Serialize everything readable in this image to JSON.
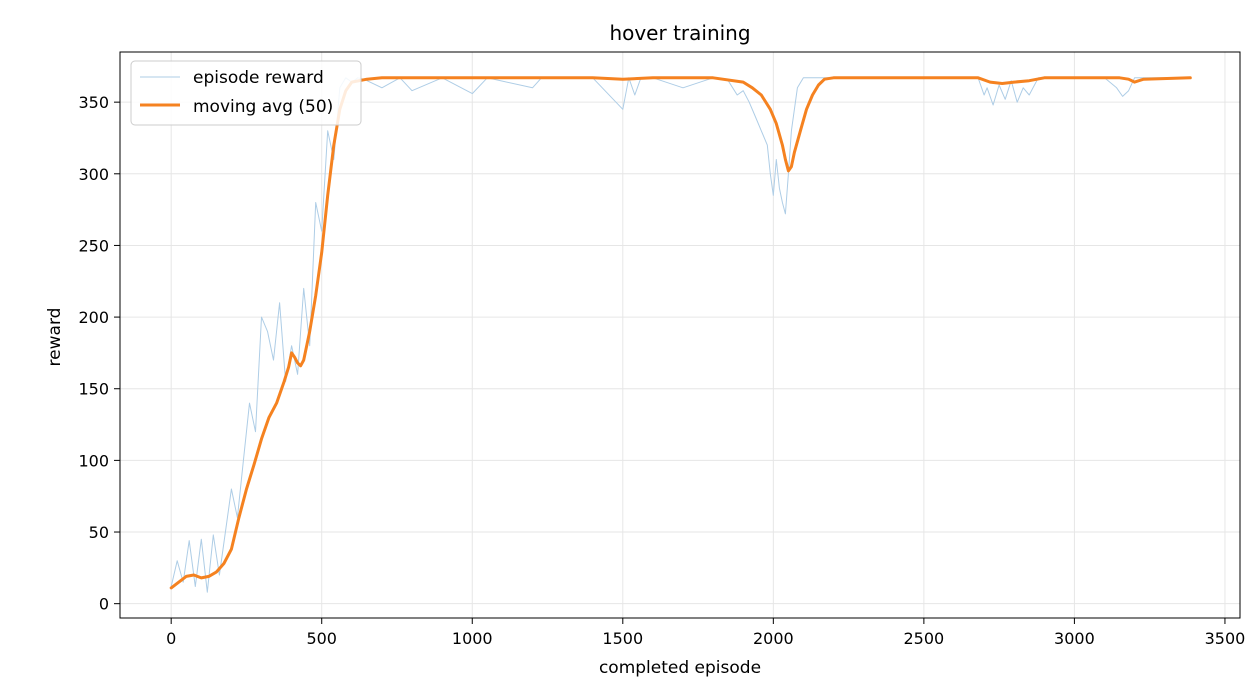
{
  "chart_data": {
    "type": "line",
    "title": "hover training",
    "xlabel": "completed episode",
    "ylabel": "reward",
    "xlim": [
      -170,
      3550
    ],
    "ylim": [
      -10,
      385
    ],
    "xticks": [
      0,
      500,
      1000,
      1500,
      2000,
      2500,
      3000,
      3500
    ],
    "yticks": [
      0,
      50,
      100,
      150,
      200,
      250,
      300,
      350
    ],
    "grid": true,
    "legend_position": "top-left",
    "series": [
      {
        "name": "episode reward",
        "color": "#aecde6",
        "style": "thin noisy line",
        "x": [
          0,
          20,
          40,
          60,
          80,
          100,
          120,
          140,
          160,
          180,
          200,
          220,
          240,
          260,
          280,
          300,
          320,
          340,
          360,
          380,
          400,
          420,
          440,
          460,
          480,
          500,
          520,
          540,
          560,
          580,
          600,
          620,
          640,
          700,
          760,
          800,
          900,
          1000,
          1050,
          1200,
          1230,
          1400,
          1500,
          1520,
          1540,
          1560,
          1600,
          1700,
          1800,
          1850,
          1880,
          1900,
          1920,
          1940,
          1960,
          1980,
          1990,
          2000,
          2010,
          2020,
          2030,
          2040,
          2050,
          2060,
          2070,
          2080,
          2100,
          2120,
          2140,
          2160,
          2200,
          2400,
          2600,
          2680,
          2700,
          2710,
          2730,
          2750,
          2770,
          2790,
          2810,
          2830,
          2850,
          2880,
          2950,
          3100,
          3140,
          3160,
          3180,
          3200,
          3250,
          3385
        ],
        "values": [
          12,
          30,
          15,
          44,
          12,
          45,
          8,
          48,
          20,
          50,
          80,
          60,
          100,
          140,
          120,
          200,
          190,
          170,
          210,
          155,
          180,
          160,
          220,
          180,
          280,
          260,
          330,
          310,
          360,
          367,
          364,
          367,
          366,
          360,
          367,
          358,
          367,
          356,
          367,
          360,
          367,
          367,
          345,
          367,
          355,
          367,
          367,
          360,
          367,
          365,
          355,
          358,
          350,
          340,
          330,
          320,
          300,
          285,
          310,
          290,
          280,
          272,
          300,
          330,
          345,
          360,
          367,
          367,
          367,
          367,
          367,
          367,
          367,
          367,
          355,
          360,
          348,
          362,
          352,
          365,
          350,
          360,
          355,
          367,
          367,
          367,
          360,
          354,
          358,
          367,
          367,
          367
        ]
      },
      {
        "name": "moving avg (50)",
        "color": "#f58220",
        "style": "thick line",
        "x": [
          0,
          25,
          50,
          75,
          100,
          125,
          150,
          175,
          200,
          225,
          250,
          275,
          300,
          325,
          350,
          375,
          390,
          400,
          410,
          420,
          430,
          440,
          460,
          480,
          500,
          520,
          540,
          560,
          580,
          600,
          650,
          700,
          800,
          1000,
          1200,
          1400,
          1500,
          1600,
          1700,
          1800,
          1900,
          1930,
          1960,
          1990,
          2010,
          2030,
          2040,
          2050,
          2060,
          2070,
          2090,
          2110,
          2130,
          2150,
          2170,
          2200,
          2300,
          2500,
          2680,
          2720,
          2760,
          2800,
          2850,
          2900,
          3000,
          3100,
          3150,
          3180,
          3200,
          3230,
          3385
        ],
        "values": [
          11,
          15,
          19,
          20,
          18,
          19,
          22,
          28,
          38,
          60,
          80,
          97,
          115,
          130,
          140,
          155,
          165,
          175,
          172,
          168,
          166,
          170,
          190,
          215,
          245,
          285,
          320,
          345,
          358,
          364,
          366,
          367,
          367,
          367,
          367,
          367,
          366,
          367,
          367,
          367,
          364,
          360,
          355,
          345,
          335,
          320,
          310,
          302,
          305,
          315,
          330,
          345,
          355,
          362,
          366,
          367,
          367,
          367,
          367,
          364,
          363,
          364,
          365,
          367,
          367,
          367,
          367,
          366,
          364,
          366,
          367
        ]
      }
    ]
  }
}
